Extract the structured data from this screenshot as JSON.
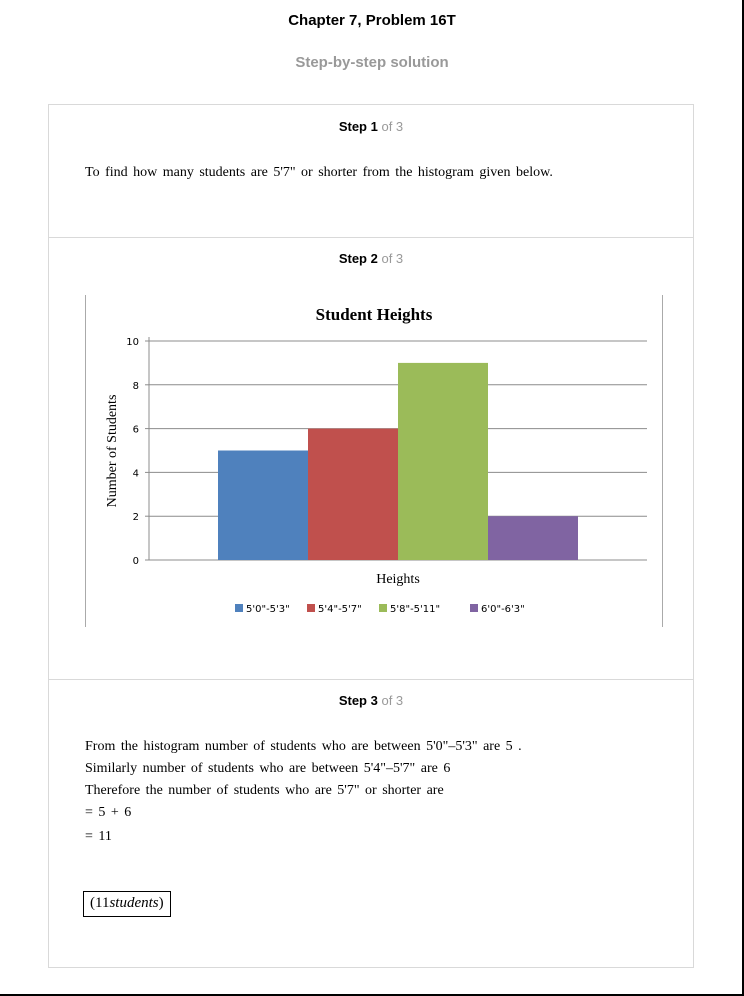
{
  "header": {
    "title": "Chapter 7, Problem 16T",
    "subtitle": "Step-by-step solution"
  },
  "steps": [
    {
      "label": "Step 1",
      "of": "of 3",
      "text": "To find how many students are 5'7\" or shorter from the histogram given below."
    },
    {
      "label": "Step 2",
      "of": "of 3"
    },
    {
      "label": "Step 3",
      "of": "of 3",
      "lines": [
        "From the histogram number of students who are between 5'0\"–5'3\" are 5 .",
        "Similarly number of students who are between 5'4\"–5'7\" are 6",
        "Therefore the number of students who are 5'7\" or shorter are",
        "= 5 + 6",
        "= 11"
      ],
      "answer_num": "(11",
      "answer_word": "students",
      "answer_close": ")"
    }
  ],
  "chart_data": {
    "type": "bar",
    "title": "Student Heights",
    "xlabel": "Heights",
    "ylabel": "Number of Students",
    "ylim": [
      0,
      10
    ],
    "yticks": [
      "0",
      "2",
      "4",
      "6",
      "8",
      "10"
    ],
    "grid": true,
    "legend_position": "bottom",
    "categories": [
      "5'0\"-5'3\"",
      "5'4\"-5'7\"",
      "5'8\"-5'11\"",
      "6'0\"-6'3\""
    ],
    "values": [
      5,
      6,
      9,
      2
    ],
    "colors": [
      "#4f81bd",
      "#c0504d",
      "#9bbb59",
      "#8064a2"
    ]
  }
}
